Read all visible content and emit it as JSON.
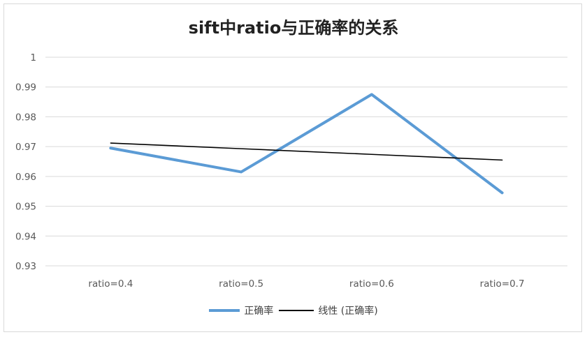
{
  "chart_data": {
    "type": "line",
    "title": "sift中ratio与正确率的关系",
    "xlabel": "",
    "ylabel": "",
    "categories": [
      "ratio=0.4",
      "ratio=0.5",
      "ratio=0.6",
      "ratio=0.7"
    ],
    "ylim": [
      0.93,
      1
    ],
    "yticks": [
      "0.93",
      "0.94",
      "0.95",
      "0.96",
      "0.97",
      "0.98",
      "0.99",
      "1"
    ],
    "grid": true,
    "legend_position": "bottom",
    "series": [
      {
        "name": "正确率",
        "values": [
          0.9695,
          0.9615,
          0.9875,
          0.9545
        ],
        "color": "#5b9bd5"
      },
      {
        "name": "线性 (正确率)",
        "values": [
          0.9712,
          0.9693,
          0.9674,
          0.9655
        ],
        "color": "#000000",
        "kind": "trendline"
      }
    ]
  }
}
